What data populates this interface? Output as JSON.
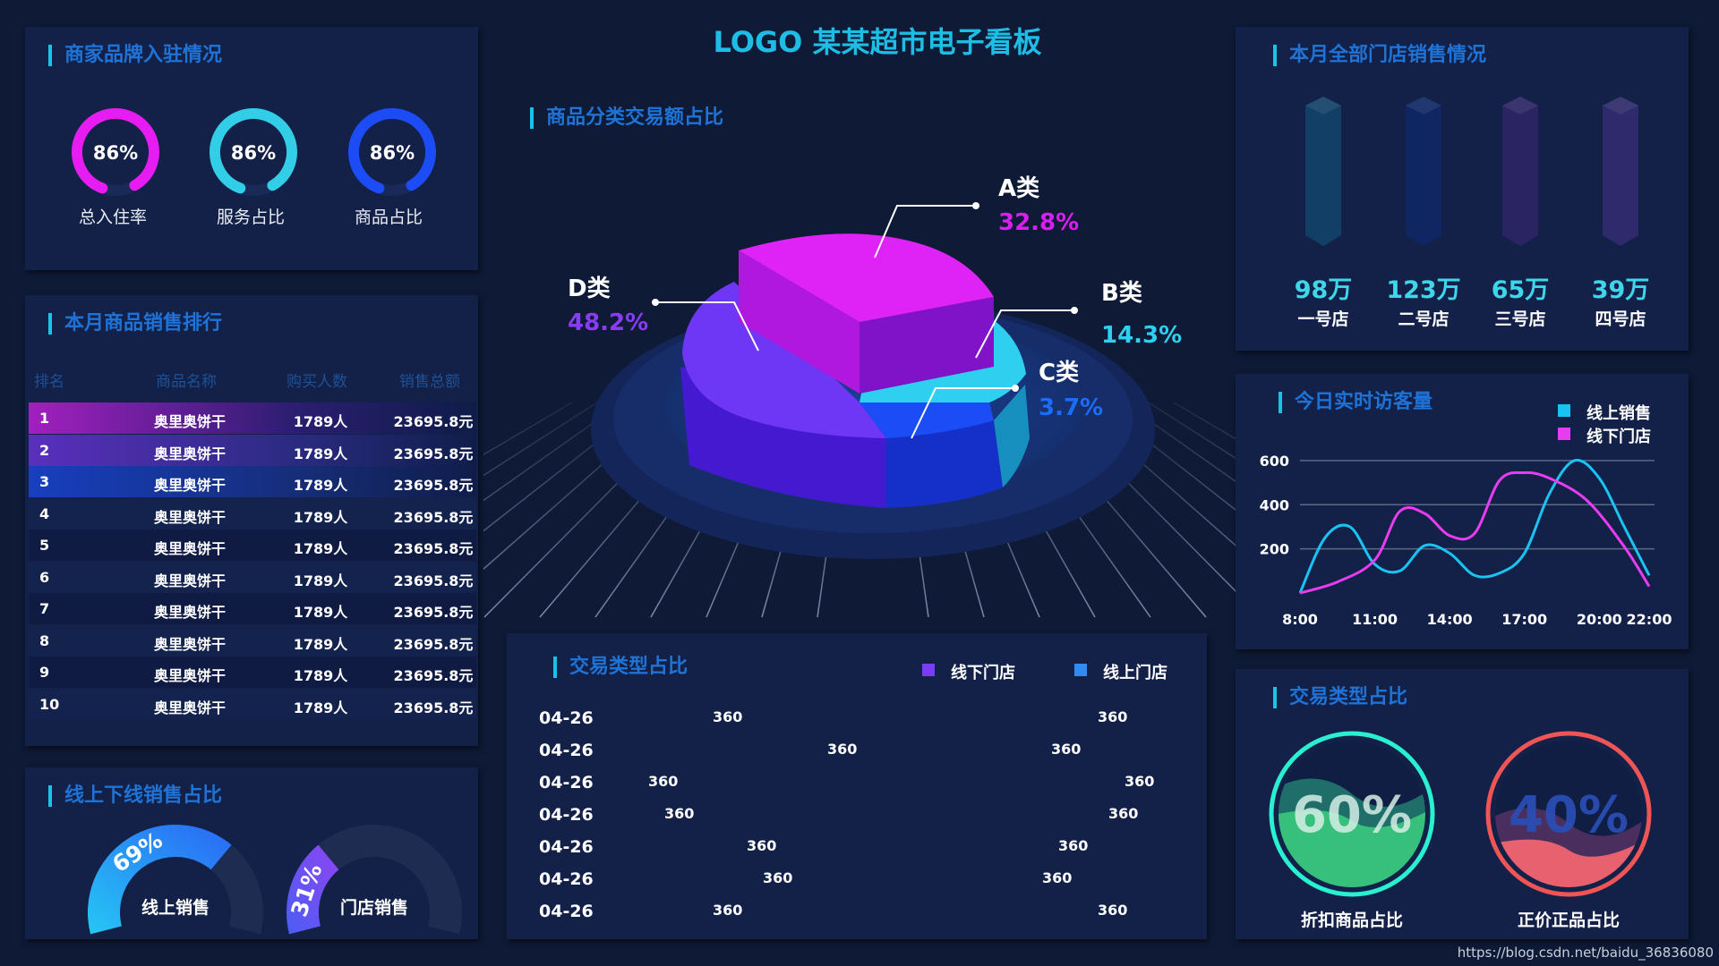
{
  "header": {
    "title": "LOGO 某某超市电子看板"
  },
  "brand_panel": {
    "title": "商家品牌入驻情况",
    "rings": [
      {
        "value": "86%",
        "label": "总入住率",
        "percent": 86,
        "color": "#e61cf2"
      },
      {
        "value": "86%",
        "label": "服务占比",
        "percent": 86,
        "color": "#32cde6"
      },
      {
        "value": "86%",
        "label": "商品占比",
        "percent": 86,
        "color": "#1c4cf5"
      }
    ]
  },
  "ranking": {
    "title": "本月商品销售排行",
    "headers": [
      "排名",
      "商品名称",
      "购买人数",
      "销售总额"
    ],
    "rows": [
      {
        "rank": "1",
        "name": "奥里奥饼干",
        "buyers": "1789人",
        "total": "23695.8元"
      },
      {
        "rank": "2",
        "name": "奥里奥饼干",
        "buyers": "1789人",
        "total": "23695.8元"
      },
      {
        "rank": "3",
        "name": "奥里奥饼干",
        "buyers": "1789人",
        "total": "23695.8元"
      },
      {
        "rank": "4",
        "name": "奥里奥饼干",
        "buyers": "1789人",
        "total": "23695.8元"
      },
      {
        "rank": "5",
        "name": "奥里奥饼干",
        "buyers": "1789人",
        "total": "23695.8元"
      },
      {
        "rank": "6",
        "name": "奥里奥饼干",
        "buyers": "1789人",
        "total": "23695.8元"
      },
      {
        "rank": "7",
        "name": "奥里奥饼干",
        "buyers": "1789人",
        "total": "23695.8元"
      },
      {
        "rank": "8",
        "name": "奥里奥饼干",
        "buyers": "1789人",
        "total": "23695.8元"
      },
      {
        "rank": "9",
        "name": "奥里奥饼干",
        "buyers": "1789人",
        "total": "23695.8元"
      },
      {
        "rank": "10",
        "name": "奥里奥饼干",
        "buyers": "1789人",
        "total": "23695.8元"
      }
    ]
  },
  "online_offline": {
    "title": "线上下线销售占比",
    "gauges": [
      {
        "value": "69%",
        "label": "线上销售",
        "percent": 69
      },
      {
        "value": "31%",
        "label": "门店销售",
        "percent": 31
      }
    ]
  },
  "category_pie": {
    "title": "商品分类交易额占比",
    "slices": [
      {
        "name": "A类",
        "value": "32.8%",
        "color": "#d81ef0"
      },
      {
        "name": "B类",
        "value": "14.3%",
        "color": "#2fd0ef"
      },
      {
        "name": "C类",
        "value": "3.7%",
        "color": "#1c4cf5"
      },
      {
        "name": "D类",
        "value": "48.2%",
        "color": "#7b3cf5"
      }
    ]
  },
  "trade_type": {
    "title": "交易类型占比",
    "legend": [
      {
        "label": "线下门店",
        "color": "#7b3cf5"
      },
      {
        "label": "线上门店",
        "color": "#2f8cf5"
      }
    ],
    "rows": [
      {
        "date": "04-26",
        "offline": "360",
        "online": "360"
      },
      {
        "date": "04-26",
        "offline": "360",
        "online": "360"
      },
      {
        "date": "04-26",
        "offline": "360",
        "online": "360"
      },
      {
        "date": "04-26",
        "offline": "360",
        "online": "360"
      },
      {
        "date": "04-26",
        "offline": "360",
        "online": "360"
      },
      {
        "date": "04-26",
        "offline": "360",
        "online": "360"
      },
      {
        "date": "04-26",
        "offline": "360",
        "online": "360"
      }
    ]
  },
  "stores": {
    "title": "本月全部门店销售情况",
    "items": [
      {
        "value": "98万",
        "name": "一号店",
        "color": "#123f66"
      },
      {
        "value": "123万",
        "name": "二号店",
        "color": "#0f2663"
      },
      {
        "value": "65万",
        "name": "三号店",
        "color": "#2a2463"
      },
      {
        "value": "39万",
        "name": "四号店",
        "color": "#2e2a6b"
      }
    ]
  },
  "visitors": {
    "title": "今日实时访客量",
    "legend": [
      {
        "label": "线上销售",
        "color": "#19c3f2"
      },
      {
        "label": "线下门店",
        "color": "#e83cf0"
      }
    ]
  },
  "chart_data": {
    "type": "line",
    "title": "今日实时访客量",
    "x": [
      "8:00",
      "11:00",
      "14:00",
      "17:00",
      "20:00",
      "22:00"
    ],
    "y_ticks": [
      200,
      400,
      600
    ],
    "ylim": [
      0,
      650
    ],
    "series": [
      {
        "name": "线上销售",
        "color": "#19c3f2",
        "points": [
          [
            8.0,
            0
          ],
          [
            9.0,
            250
          ],
          [
            10.0,
            300
          ],
          [
            11.0,
            130
          ],
          [
            12.0,
            100
          ],
          [
            13.0,
            215
          ],
          [
            14.0,
            180
          ],
          [
            15.0,
            80
          ],
          [
            16.0,
            90
          ],
          [
            17.0,
            180
          ],
          [
            18.0,
            450
          ],
          [
            19.0,
            600
          ],
          [
            20.0,
            520
          ],
          [
            21.0,
            300
          ],
          [
            22.0,
            80
          ]
        ]
      },
      {
        "name": "线下门店",
        "color": "#e83cf0",
        "points": [
          [
            8.0,
            0
          ],
          [
            9.5,
            50
          ],
          [
            11.0,
            150
          ],
          [
            12.0,
            370
          ],
          [
            13.0,
            360
          ],
          [
            14.0,
            260
          ],
          [
            15.0,
            270
          ],
          [
            16.0,
            510
          ],
          [
            17.0,
            545
          ],
          [
            18.0,
            520
          ],
          [
            19.5,
            420
          ],
          [
            21.0,
            210
          ],
          [
            22.0,
            30
          ]
        ]
      }
    ],
    "grid": true,
    "legend": "top-right"
  },
  "trade_type_rings": {
    "title": "交易类型占比",
    "items": [
      {
        "value": "60%",
        "label": "折扣商品占比",
        "percent": 60,
        "color": "#2af0d2"
      },
      {
        "value": "40%",
        "label": "正价正品占比",
        "percent": 40,
        "color": "#f05555"
      }
    ]
  },
  "footer": {
    "watermark": "https://blog.csdn.net/baidu_36836080"
  }
}
